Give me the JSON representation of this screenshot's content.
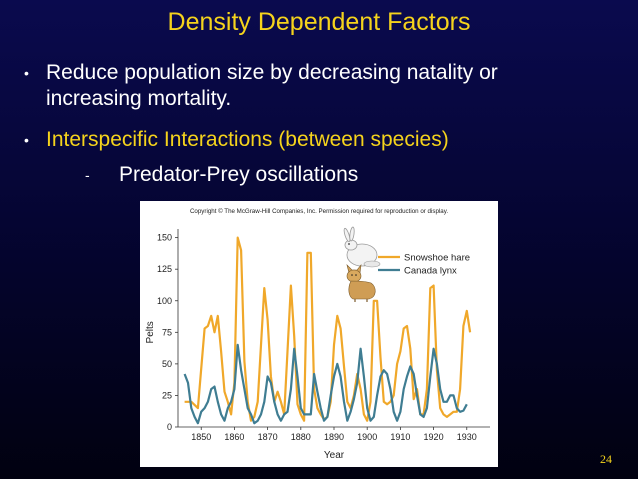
{
  "slide": {
    "title": "Density Dependent Factors",
    "bullets": [
      "Reduce population size by decreasing natality or",
      "increasing mortality.",
      "Interspecific Interactions (between species)"
    ],
    "sub_bullet": "Predator-Prey oscillations",
    "bullet_marker": "•",
    "sub_marker": "-",
    "page_number": "24",
    "colors": {
      "title": "#f5d31c",
      "text": "#ffffff",
      "highlight": "#f5d31c",
      "background": "#050533"
    }
  },
  "chart_data": {
    "type": "line",
    "copyright": "Copyright © The McGraw-Hill Companies, Inc. Permission required for reproduction or display.",
    "xlabel": "Year",
    "ylabel": "Pelts",
    "xlim": [
      1843,
      1937
    ],
    "ylim": [
      0,
      160
    ],
    "xticks": [
      1850,
      1860,
      1870,
      1880,
      1890,
      1900,
      1910,
      1920,
      1930
    ],
    "yticks": [
      0,
      25,
      50,
      75,
      100,
      125,
      150
    ],
    "grid": false,
    "legend": "top-right",
    "series": [
      {
        "name": "Snowshoe hare",
        "color": "#f0a82a",
        "x": [
          1845,
          1847,
          1849,
          1851,
          1852,
          1853,
          1854,
          1855,
          1856,
          1857,
          1858,
          1859,
          1860,
          1861,
          1862,
          1863,
          1864,
          1865,
          1866,
          1867,
          1868,
          1869,
          1870,
          1871,
          1872,
          1873,
          1874,
          1875,
          1876,
          1877,
          1878,
          1879,
          1880,
          1881,
          1882,
          1883,
          1884,
          1885,
          1886,
          1887,
          1888,
          1889,
          1890,
          1891,
          1892,
          1893,
          1894,
          1895,
          1896,
          1897,
          1898,
          1899,
          1900,
          1901,
          1902,
          1903,
          1904,
          1905,
          1906,
          1907,
          1908,
          1909,
          1910,
          1911,
          1912,
          1913,
          1914,
          1915,
          1916,
          1917,
          1918,
          1919,
          1920,
          1921,
          1922,
          1923,
          1924,
          1925,
          1926,
          1927,
          1928,
          1929,
          1930,
          1931
        ],
        "values": [
          20,
          20,
          15,
          78,
          80,
          88,
          75,
          88,
          60,
          28,
          20,
          10,
          35,
          150,
          140,
          52,
          20,
          5,
          8,
          20,
          65,
          110,
          85,
          40,
          20,
          28,
          20,
          10,
          60,
          112,
          72,
          18,
          10,
          5,
          138,
          138,
          30,
          15,
          10,
          6,
          8,
          20,
          65,
          88,
          78,
          48,
          20,
          15,
          25,
          42,
          30,
          10,
          5,
          20,
          100,
          100,
          55,
          20,
          18,
          20,
          25,
          50,
          60,
          78,
          80,
          62,
          22,
          30,
          10,
          10,
          30,
          110,
          112,
          45,
          15,
          10,
          8,
          10,
          12,
          12,
          30,
          80,
          92,
          75
        ]
      },
      {
        "name": "Canada lynx",
        "color": "#3f7d92",
        "x": [
          1845,
          1846,
          1847,
          1848,
          1849,
          1850,
          1851,
          1852,
          1853,
          1854,
          1855,
          1856,
          1857,
          1858,
          1859,
          1860,
          1861,
          1862,
          1863,
          1864,
          1865,
          1866,
          1867,
          1868,
          1869,
          1870,
          1871,
          1872,
          1873,
          1874,
          1875,
          1876,
          1877,
          1878,
          1879,
          1880,
          1881,
          1882,
          1883,
          1884,
          1885,
          1886,
          1887,
          1888,
          1889,
          1890,
          1891,
          1892,
          1893,
          1894,
          1895,
          1896,
          1897,
          1898,
          1899,
          1900,
          1901,
          1902,
          1903,
          1904,
          1905,
          1906,
          1907,
          1908,
          1909,
          1910,
          1911,
          1912,
          1913,
          1914,
          1915,
          1916,
          1917,
          1918,
          1919,
          1920,
          1921,
          1922,
          1923,
          1924,
          1925,
          1926,
          1927,
          1928,
          1929,
          1930
        ],
        "values": [
          42,
          35,
          15,
          8,
          3,
          12,
          15,
          20,
          30,
          32,
          20,
          10,
          5,
          15,
          20,
          30,
          65,
          45,
          30,
          15,
          10,
          3,
          5,
          10,
          20,
          40,
          35,
          20,
          10,
          5,
          10,
          12,
          30,
          62,
          40,
          15,
          10,
          10,
          10,
          42,
          28,
          15,
          5,
          8,
          25,
          40,
          50,
          40,
          20,
          5,
          12,
          22,
          35,
          62,
          40,
          15,
          5,
          8,
          25,
          40,
          45,
          42,
          30,
          12,
          5,
          12,
          30,
          40,
          48,
          42,
          25,
          10,
          8,
          15,
          40,
          62,
          50,
          30,
          20,
          20,
          25,
          25,
          15,
          12,
          13,
          18
        ]
      }
    ]
  }
}
